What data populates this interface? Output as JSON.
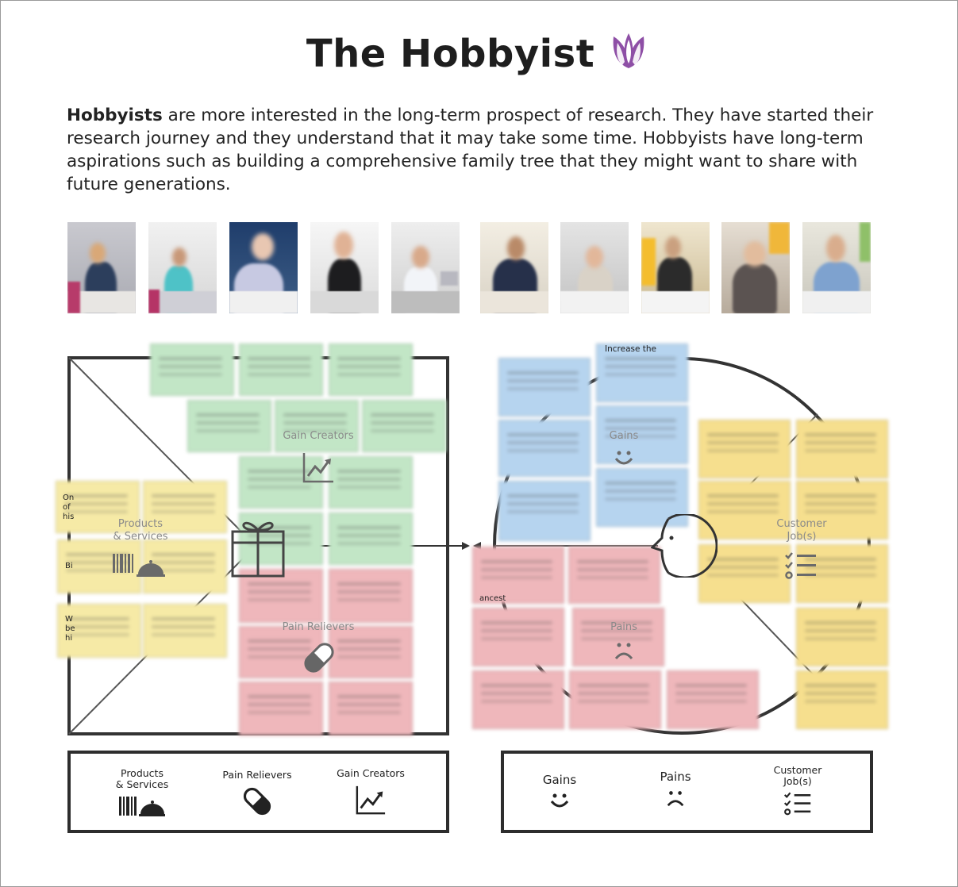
{
  "title": "The Hobbyist",
  "brand_color": "#8e4fa6",
  "intro": {
    "bold": "Hobbyists",
    "text": " are more interested in the long-term prospect of research. They have started their research journey and they understand that it may take some time. Hobbyists have long-term aspirations such as building a comprehensive family tree that they might want to share with future generations."
  },
  "canvas_labels": {
    "gain_creators": "Gain Creators",
    "products_line1": "Products",
    "products_line2": "& Services",
    "pain_relievers": "Pain Relievers",
    "gains": "Gains",
    "customer_jobs_line1": "Customer",
    "customer_jobs_line2": "Job(s)",
    "pains": "Pains"
  },
  "visible_note_snippets": {
    "top_blue": "Increase the",
    "yellow_left_1a": "On",
    "yellow_left_1b": "of",
    "yellow_left_1c": "his",
    "yellow_left_2": "Bi",
    "yellow_left_3a": "W",
    "yellow_left_3b": "be",
    "yellow_left_3c": "hi",
    "pink_left_edge": "ancest"
  },
  "legend_left": {
    "products_line1": "Products",
    "products_line2": "& Services",
    "pain_relievers": "Pain Relievers",
    "gain_creators": "Gain Creators"
  },
  "legend_right": {
    "gains": "Gains",
    "pains": "Pains",
    "customer_jobs_line1": "Customer",
    "customer_jobs_line2": "Job(s)"
  },
  "icons": [
    "lotus-logo-icon",
    "gift-icon",
    "barcode-icon",
    "cloche-icon",
    "pill-icon",
    "trending-chart-icon",
    "smile-icon",
    "frown-icon",
    "checklist-icon"
  ]
}
